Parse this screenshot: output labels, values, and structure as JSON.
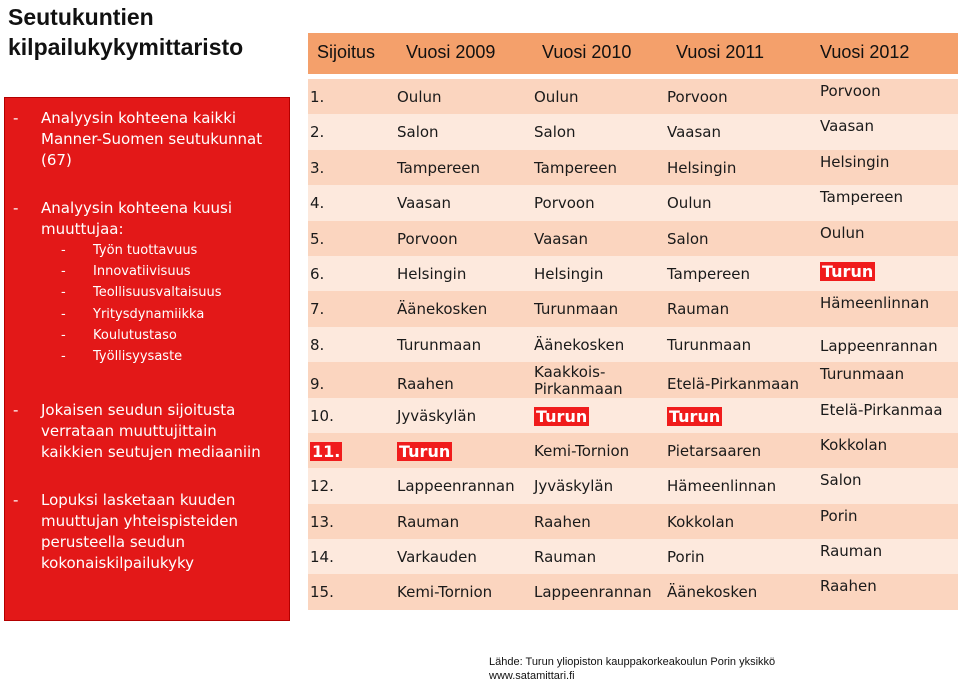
{
  "title": {
    "line1": "Seutukuntien",
    "line2": "kilpailukykymittaristo"
  },
  "sidebar": {
    "bullet1": "Analyysin kohteena kaikki Manner-Suomen seutukunnat (67)",
    "bullet2": "Analyysin kohteena kuusi muuttujaa:",
    "subitems": [
      "Työn tuottavuus",
      "Innovatiivisuus",
      "Teollisuusvaltaisuus",
      "Yritysdynamiikka",
      "Koulutustaso",
      "Työllisyysaste"
    ],
    "bullet3": "Jokaisen seudun sijoitusta verrataan muuttujittain kaikkien seutujen mediaaniin",
    "bullet4": "Lopuksi lasketaan kuuden muuttujan yhteispisteiden perusteella seudun kokonaiskilpailukyky",
    "dash": "-"
  },
  "header": {
    "rank": "Sijoitus",
    "y2009": "Vuosi 2009",
    "y2010": "Vuosi 2010",
    "y2011": "Vuosi 2011",
    "y2012": "Vuosi 2012"
  },
  "rows": [
    {
      "rank": "1.",
      "y2009": "Oulun",
      "y2010": "Oulun",
      "y2011": "Porvoon"
    },
    {
      "rank": "2.",
      "y2009": "Salon",
      "y2010": "Salon",
      "y2011": "Vaasan"
    },
    {
      "rank": "3.",
      "y2009": "Tampereen",
      "y2010": "Tampereen",
      "y2011": "Helsingin"
    },
    {
      "rank": "4.",
      "y2009": "Vaasan",
      "y2010": "Porvoon",
      "y2011": "Oulun"
    },
    {
      "rank": "5.",
      "y2009": "Porvoon",
      "y2010": "Vaasan",
      "y2011": "Salon"
    },
    {
      "rank": "6.",
      "y2009": "Helsingin",
      "y2010": "Helsingin",
      "y2011": "Tampereen"
    },
    {
      "rank": "7.",
      "y2009": "Äänekosken",
      "y2010": "Turunmaan",
      "y2011": "Rauman"
    },
    {
      "rank": "8.",
      "y2009": "Turunmaan",
      "y2010": "Äänekosken",
      "y2011": "Turunmaan"
    },
    {
      "rank": "9.",
      "y2009": "Raahen",
      "y2010_line1": "Kaakkois-",
      "y2010_line2": "Pirkanmaan",
      "y2011": "Etelä-Pirkanmaan"
    },
    {
      "rank": "10.",
      "y2009": "Jyväskylän",
      "y2010": "Turun",
      "y2011": "Turun"
    },
    {
      "rank": "11.",
      "y2009": "Turun",
      "y2010": "Kemi-Tornion",
      "y2011": "Pietarsaaren"
    },
    {
      "rank": "12.",
      "y2009": "Lappeenrannan",
      "y2010": "Jyväskylän",
      "y2011": "Hämeenlinnan"
    },
    {
      "rank": "13.",
      "y2009": "Rauman",
      "y2010": "Raahen",
      "y2011": "Kokkolan"
    },
    {
      "rank": "14.",
      "y2009": "Varkauden",
      "y2010": "Rauman",
      "y2011": "Porin"
    },
    {
      "rank": "15.",
      "y2009": "Kemi-Tornion",
      "y2010": "Lappeenrannan",
      "y2011": "Äänekosken"
    }
  ],
  "col2012": [
    "Porvoon",
    "Vaasan",
    "Helsingin",
    "Tampereen",
    "Oulun",
    "Turun",
    "Hämeenlinnan",
    "Lappeenrannan",
    "Turunmaan",
    "Etelä-Pirkanmaa",
    "Kokkolan",
    "Salon",
    "Porin",
    "Rauman",
    "Raahen"
  ],
  "source": {
    "line1": "Lähde: Turun yliopiston kauppakorkeakoulun Porin yksikkö",
    "line2": "www.satamittari.fi"
  },
  "colors": {
    "red": "#e31818",
    "header": "#f4a06b",
    "row_dark": "#fbd5bf",
    "row_light": "#fde9dd",
    "highlight": "#f01c1c"
  }
}
